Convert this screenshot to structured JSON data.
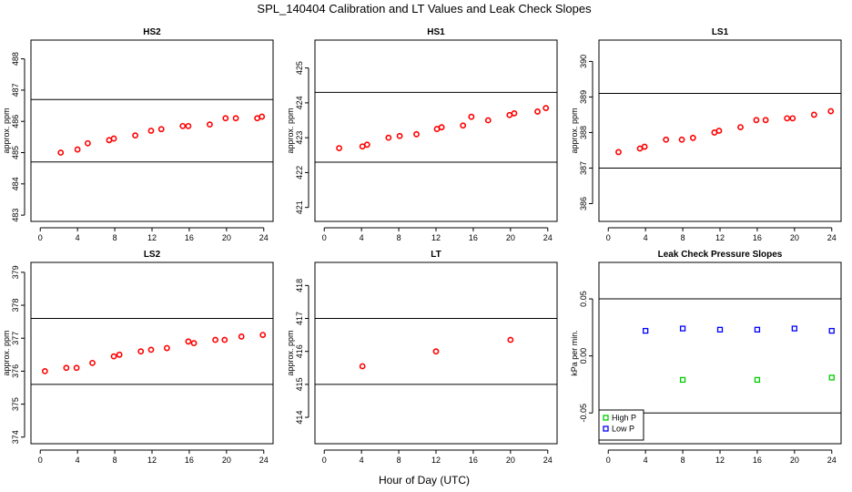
{
  "main_title": "SPL_140404  Calibration and LT Values and Leak Check Slopes",
  "x_axis_label": "Hour of Day (UTC)",
  "chart_data": [
    {
      "type": "scatter",
      "title": "HS2",
      "ylabel": "approx. ppm",
      "xlim": [
        -1,
        25
      ],
      "ylim": [
        482.8,
        488.6
      ],
      "xticks": [
        0,
        4,
        8,
        12,
        16,
        20,
        24
      ],
      "yticks": [
        483,
        484,
        485,
        486,
        487,
        488
      ],
      "hlines": [
        484.7,
        486.7
      ],
      "series": [
        {
          "color": "#ff0000",
          "marker": "circle",
          "x": [
            2.2,
            4.0,
            5.1,
            7.4,
            7.9,
            10.2,
            11.9,
            13.0,
            15.3,
            15.9,
            18.2,
            19.9,
            21.0,
            23.3,
            23.8
          ],
          "y": [
            485.0,
            485.1,
            485.3,
            485.4,
            485.45,
            485.55,
            485.7,
            485.75,
            485.85,
            485.85,
            485.9,
            486.1,
            486.1,
            486.1,
            486.15
          ]
        }
      ]
    },
    {
      "type": "scatter",
      "title": "HS1",
      "ylabel": "approx. ppm",
      "xlim": [
        -1,
        25
      ],
      "ylim": [
        420.6,
        425.8
      ],
      "xticks": [
        0,
        4,
        8,
        12,
        16,
        20,
        24
      ],
      "yticks": [
        421,
        422,
        423,
        424,
        425
      ],
      "hlines": [
        422.3,
        424.3
      ],
      "series": [
        {
          "color": "#ff0000",
          "marker": "circle",
          "x": [
            1.6,
            4.1,
            4.6,
            6.9,
            8.1,
            9.9,
            12.1,
            12.6,
            14.9,
            15.8,
            17.6,
            19.9,
            20.4,
            22.9,
            23.8
          ],
          "y": [
            422.7,
            422.75,
            422.8,
            423.0,
            423.05,
            423.1,
            423.25,
            423.3,
            423.35,
            423.6,
            423.5,
            423.65,
            423.7,
            423.75,
            423.85
          ]
        }
      ]
    },
    {
      "type": "scatter",
      "title": "LS1",
      "ylabel": "approx. ppm",
      "xlim": [
        -1,
        25
      ],
      "ylim": [
        385.5,
        390.6
      ],
      "xticks": [
        0,
        4,
        8,
        12,
        16,
        20,
        24
      ],
      "yticks": [
        386,
        387,
        388,
        389,
        390
      ],
      "hlines": [
        387.0,
        389.1
      ],
      "series": [
        {
          "color": "#ff0000",
          "marker": "circle",
          "x": [
            1.1,
            3.4,
            3.9,
            6.2,
            7.9,
            9.1,
            11.4,
            11.9,
            14.2,
            15.9,
            16.9,
            19.2,
            19.8,
            22.1,
            23.9
          ],
          "y": [
            387.45,
            387.55,
            387.6,
            387.8,
            387.8,
            387.85,
            388.0,
            388.05,
            388.15,
            388.35,
            388.35,
            388.4,
            388.4,
            388.5,
            388.6
          ]
        }
      ]
    },
    {
      "type": "scatter",
      "title": "LS2",
      "ylabel": "approx. ppm",
      "xlim": [
        -1,
        25
      ],
      "ylim": [
        373.8,
        379.3
      ],
      "xticks": [
        0,
        4,
        8,
        12,
        16,
        20,
        24
      ],
      "yticks": [
        374,
        375,
        376,
        377,
        378,
        379
      ],
      "hlines": [
        375.6,
        377.6
      ],
      "series": [
        {
          "color": "#ff0000",
          "marker": "circle",
          "x": [
            0.5,
            2.8,
            3.9,
            5.6,
            7.9,
            8.5,
            10.8,
            11.9,
            13.6,
            15.9,
            16.5,
            18.8,
            19.8,
            21.6,
            23.9
          ],
          "y": [
            376.0,
            376.1,
            376.1,
            376.25,
            376.45,
            376.5,
            376.6,
            376.65,
            376.7,
            376.9,
            376.85,
            376.95,
            376.95,
            377.05,
            377.1
          ]
        }
      ]
    },
    {
      "type": "scatter",
      "title": "LT",
      "ylabel": "approx. ppm",
      "xlim": [
        -1,
        25
      ],
      "ylim": [
        413.2,
        418.7
      ],
      "xticks": [
        0,
        4,
        8,
        12,
        16,
        20,
        24
      ],
      "yticks": [
        414,
        415,
        416,
        417,
        418
      ],
      "hlines": [
        415.0,
        417.0
      ],
      "series": [
        {
          "color": "#ff0000",
          "marker": "circle",
          "x": [
            4.1,
            12.0,
            20.0
          ],
          "y": [
            415.55,
            416.0,
            416.35
          ]
        }
      ]
    },
    {
      "type": "scatter",
      "title": "Leak Check Pressure Slopes",
      "ylabel": "kPa per min.",
      "xlim": [
        -1,
        25
      ],
      "ylim": [
        -0.077,
        0.082
      ],
      "xticks": [
        0,
        4,
        8,
        12,
        16,
        20,
        24
      ],
      "yticks": [
        -0.05,
        0.0,
        0.05
      ],
      "ytick_labels": [
        "-0.05",
        "0.00",
        "0.05"
      ],
      "hlines": [
        -0.05,
        0.05
      ],
      "legend": {
        "position": "bottom-left",
        "entries": [
          "High P",
          "Low P"
        ]
      },
      "series": [
        {
          "name": "High P",
          "color": "#00cc00",
          "marker": "square",
          "x": [
            8.0,
            16.0,
            24.0
          ],
          "y": [
            -0.021,
            -0.021,
            -0.019
          ]
        },
        {
          "name": "Low P",
          "color": "#0000ff",
          "marker": "square",
          "x": [
            4.0,
            8.0,
            12.0,
            16.0,
            20.0,
            24.0
          ],
          "y": [
            0.022,
            0.024,
            0.023,
            0.023,
            0.024,
            0.022
          ]
        }
      ]
    }
  ]
}
